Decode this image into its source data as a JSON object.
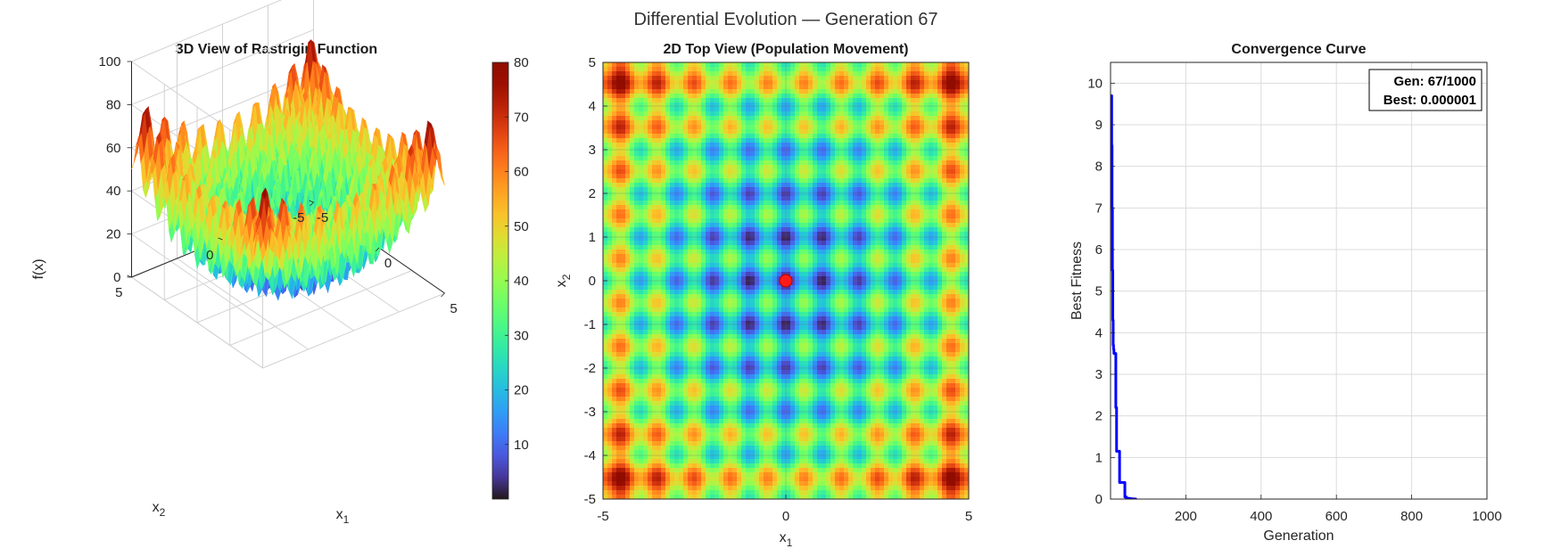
{
  "figure": {
    "suptitle": "Differential Evolution — Generation 67"
  },
  "chart_data": [
    {
      "type": "surface",
      "title": "3D View of Rastrigin Function",
      "function": "rastrigin",
      "xlabel": "x",
      "xlabel_sub": "1",
      "ylabel": "x",
      "ylabel_sub": "2",
      "zlabel": "f(x)",
      "xlim": [
        -5,
        5
      ],
      "ylim": [
        -5,
        5
      ],
      "zlim": [
        0,
        100
      ],
      "x_ticks": [
        "-5",
        "0",
        "5"
      ],
      "y_ticks": [
        "5",
        "0",
        "-5"
      ],
      "z_ticks": [
        "0",
        "20",
        "40",
        "60",
        "80",
        "100"
      ],
      "colormap": "turbo",
      "grid": true
    },
    {
      "type": "colorbar",
      "range": [
        0,
        80
      ],
      "ticks": [
        "10",
        "20",
        "30",
        "40",
        "50",
        "60",
        "70",
        "80"
      ],
      "colormap": "turbo"
    },
    {
      "type": "heatmap",
      "title": "2D Top View (Population Movement)",
      "function": "rastrigin",
      "xlabel": "x",
      "xlabel_sub": "1",
      "ylabel": "x",
      "ylabel_sub": "2",
      "xlim": [
        -5,
        5
      ],
      "ylim": [
        -5,
        5
      ],
      "x_ticks": [
        "-5",
        "0",
        "5"
      ],
      "y_ticks": [
        "5",
        "4",
        "3",
        "2",
        "1",
        "0",
        "-1",
        "-2",
        "-3",
        "-4",
        "-5"
      ],
      "colormap": "turbo",
      "population": [
        {
          "x": 0,
          "y": 0
        }
      ],
      "marker_color": "#ff1a1a",
      "grid": true
    },
    {
      "type": "line",
      "title": "Convergence Curve",
      "xlabel": "Generation",
      "ylabel": "Best Fitness",
      "xlim": [
        0,
        1000
      ],
      "ylim": [
        0,
        10.5
      ],
      "x_ticks": [
        "200",
        "400",
        "600",
        "800",
        "1000"
      ],
      "y_ticks": [
        "0",
        "1",
        "2",
        "3",
        "4",
        "5",
        "6",
        "7",
        "8",
        "9",
        "10"
      ],
      "grid": true,
      "line_color": "#0000ff",
      "series": [
        {
          "x": [
            1,
            2,
            3,
            4,
            5,
            6,
            7,
            8,
            9,
            10,
            12,
            14,
            16,
            18,
            20,
            22,
            24,
            26,
            28,
            30,
            34,
            38,
            42,
            46,
            50,
            55,
            60,
            67
          ],
          "values": [
            9.7,
            9.7,
            8.5,
            7.0,
            5.5,
            4.3,
            3.7,
            3.6,
            3.5,
            3.5,
            3.5,
            2.2,
            1.15,
            1.15,
            1.15,
            1.15,
            0.4,
            0.4,
            0.4,
            0.4,
            0.4,
            0.05,
            0.02,
            0.02,
            0.01,
            0.005,
            0.002,
            1e-06
          ]
        }
      ],
      "annotation": {
        "gen_label": "Gen: 67/1000",
        "best_label": "Best: 0.000001"
      }
    }
  ]
}
